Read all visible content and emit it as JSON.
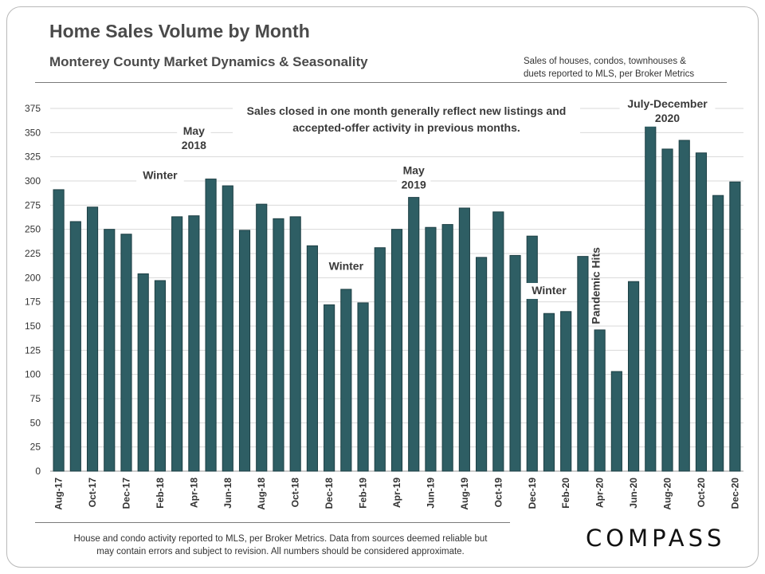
{
  "header": {
    "title": "Home Sales Volume by Month",
    "subtitle": "Monterey County Market Dynamics  & Seasonality",
    "note_line1": "Sales of houses, condos, townhouses &",
    "note_line2": "duets reported to MLS, per Broker Metrics"
  },
  "footer": {
    "line1": "House and condo activity reported to MLS, per Broker Metrics. Data from sources deemed reliable but",
    "line2": "may contain errors and subject to revision. All numbers should be considered approximate.",
    "brand": "COMPASS"
  },
  "colors": {
    "bar": "#2e5e64",
    "bar_edge": "#1d3f44",
    "grid": "#d9d9d9"
  },
  "chart_data": {
    "type": "bar",
    "ylim": [
      0,
      375
    ],
    "yticks": [
      0,
      25,
      50,
      75,
      100,
      125,
      150,
      175,
      200,
      225,
      250,
      275,
      300,
      325,
      350,
      375
    ],
    "grid": true,
    "categories": [
      "Aug-17",
      "Sep-17",
      "Oct-17",
      "Nov-17",
      "Dec-17",
      "Jan-18",
      "Feb-18",
      "Mar-18",
      "Apr-18",
      "May-18",
      "Jun-18",
      "Jul-18",
      "Aug-18",
      "Sep-18",
      "Oct-18",
      "Nov-18",
      "Dec-18",
      "Jan-19",
      "Feb-19",
      "Mar-19",
      "Apr-19",
      "May-19",
      "Jun-19",
      "Jul-19",
      "Aug-19",
      "Sep-19",
      "Oct-19",
      "Nov-19",
      "Dec-19",
      "Jan-20",
      "Feb-20",
      "Mar-20",
      "Apr-20",
      "May-20",
      "Jun-20",
      "Jul-20",
      "Aug-20",
      "Sep-20",
      "Oct-20",
      "Nov-20",
      "Dec-20"
    ],
    "tick_labels": [
      "Aug-17",
      "",
      "Oct-17",
      "",
      "Dec-17",
      "",
      "Feb-18",
      "",
      "Apr-18",
      "",
      "Jun-18",
      "",
      "Aug-18",
      "",
      "Oct-18",
      "",
      "Dec-18",
      "",
      "Feb-19",
      "",
      "Apr-19",
      "",
      "Jun-19",
      "",
      "Aug-19",
      "",
      "Oct-19",
      "",
      "Dec-19",
      "",
      "Feb-20",
      "",
      "Apr-20",
      "",
      "Jun-20",
      "",
      "Aug-20",
      "",
      "Oct-20",
      "",
      "Dec-20"
    ],
    "values": [
      291,
      258,
      273,
      250,
      245,
      204,
      197,
      263,
      264,
      302,
      295,
      249,
      276,
      261,
      263,
      233,
      172,
      188,
      174,
      231,
      250,
      283,
      252,
      255,
      272,
      221,
      268,
      223,
      243,
      163,
      165,
      222,
      146,
      103,
      196,
      371,
      333,
      342,
      329,
      285,
      299
    ],
    "annotations": [
      {
        "lines": [
          "Sales closed in one month generally reflect new listings and",
          "accepted-offer activity in previous months."
        ],
        "at": "top-center"
      },
      {
        "lines": [
          "Winter"
        ],
        "category": "Feb-18",
        "value": 302
      },
      {
        "lines": [
          "May",
          "2018"
        ],
        "category": "Apr-18",
        "value": 348
      },
      {
        "lines": [
          "Winter"
        ],
        "category": "Jan-19",
        "value": 208
      },
      {
        "lines": [
          "May",
          "2019"
        ],
        "category": "May-19",
        "value": 307
      },
      {
        "lines": [
          "Winter"
        ],
        "category": "Jan-20",
        "value": 183
      },
      {
        "lines": [
          "Pandemic Hits"
        ],
        "category": "Apr-20",
        "value": 152,
        "rotated": true
      },
      {
        "lines": [
          "July-December",
          "2020"
        ],
        "category": "Aug-20",
        "value": 376
      }
    ]
  }
}
